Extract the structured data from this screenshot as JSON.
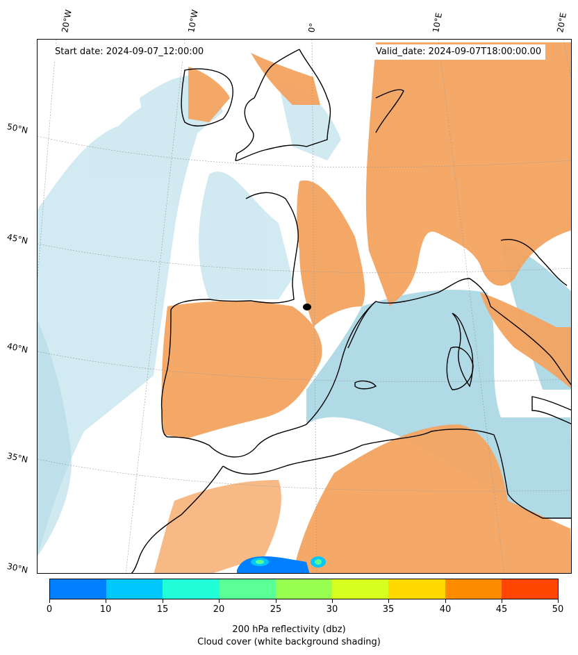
{
  "map": {
    "start_date": "Start date: 2024-09-07_12:00:00",
    "valid_date": "Valid_date: 2024-09-07T18:00:00.00",
    "lon_labels": [
      "20°W",
      "10°W",
      "0°",
      "10°E",
      "20°E"
    ],
    "lat_labels": [
      "50°N",
      "45°N",
      "40°N",
      "35°N",
      "30°N"
    ],
    "colors": {
      "cloud_cover": "#add8e6",
      "reflectivity_high": "#f4a460",
      "coastline": "#000000"
    }
  },
  "colorbar": {
    "ticks": [
      "0",
      "10",
      "15",
      "20",
      "25",
      "30",
      "35",
      "40",
      "45",
      "50"
    ],
    "colors": [
      "#0080ff",
      "#00c8ff",
      "#22ffd8",
      "#5aff96",
      "#96ff50",
      "#d8ff22",
      "#ffd800",
      "#ff8c00",
      "#ff4600"
    ],
    "label": "200 hPa reflectivity (dbz)",
    "sublabel": "Cloud cover (white background shading)"
  }
}
